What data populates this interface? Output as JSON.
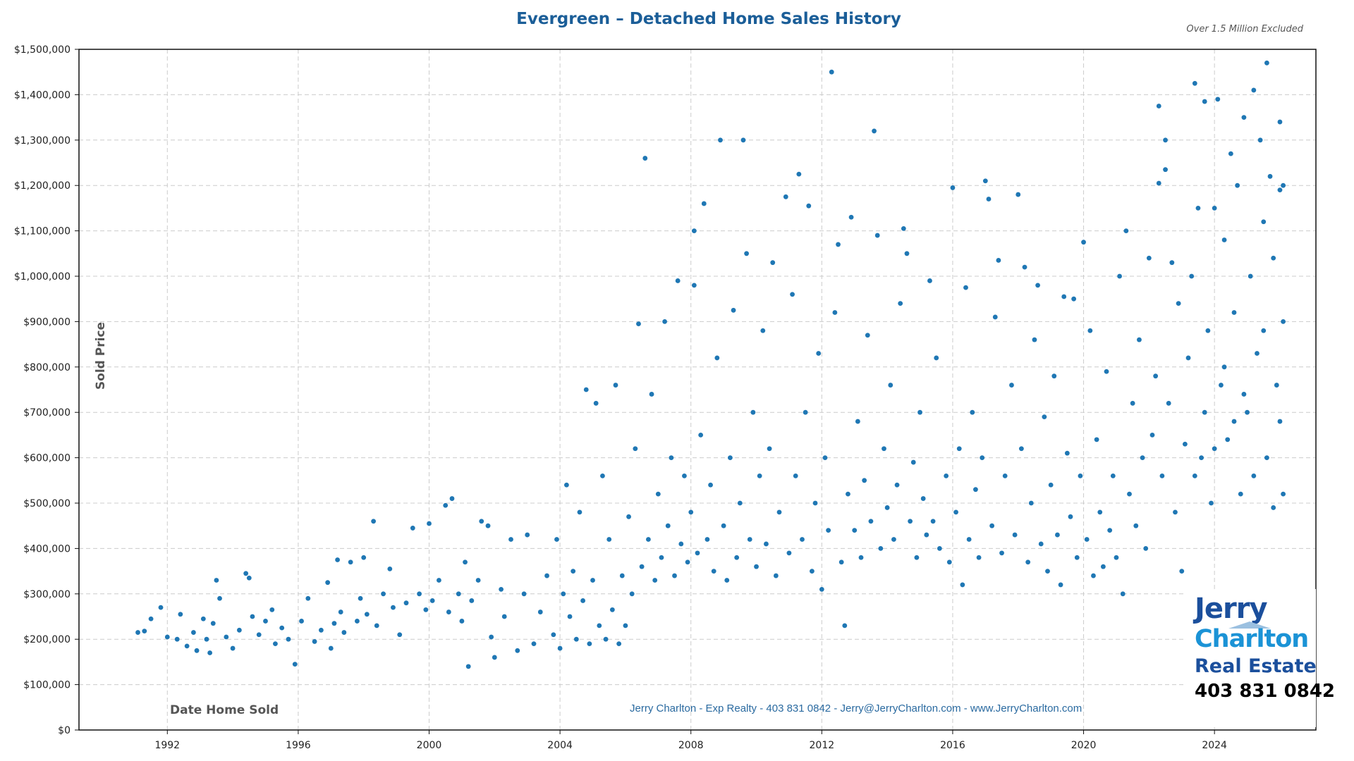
{
  "title": "Evergreen – Detached Home Sales History",
  "note": "Over 1.5 Million Excluded",
  "footer": "Jerry Charlton - Exp Realty - 403 831 0842 - Jerry@JerryCharlton.com - www.JerryCharlton.com",
  "logo": {
    "line1": "Jerry",
    "line2": "Charlton",
    "line3": "Real Estate",
    "phone": "403 831 0842"
  },
  "colors": {
    "points": "#1f77b4",
    "title": "#1b5e98",
    "footer": "#2a6aa0",
    "logo_dark": "#1b4f9c",
    "logo_light": "#1b93d6"
  },
  "chart_data": {
    "type": "scatter",
    "title": "Evergreen – Detached Home Sales History",
    "xlabel": "Date Home Sold",
    "ylabel": "Sold Price",
    "xlim": [
      1989.3,
      2027.1
    ],
    "ylim": [
      0,
      1500000
    ],
    "grid": true,
    "x_ticks": [
      "1992",
      "1996",
      "2000",
      "2004",
      "2008",
      "2012",
      "2016",
      "2020",
      "2024"
    ],
    "y_ticks": [
      "$0",
      "$100,000",
      "$200,000",
      "$300,000",
      "$400,000",
      "$500,000",
      "$600,000",
      "$700,000",
      "$800,000",
      "$900,000",
      "$1,000,000",
      "$1,100,000",
      "$1,200,000",
      "$1,300,000",
      "$1,400,000",
      "$1,500,000"
    ],
    "points": [
      [
        1991.1,
        215000
      ],
      [
        1991.3,
        218000
      ],
      [
        1991.5,
        245000
      ],
      [
        1991.8,
        270000
      ],
      [
        1992.0,
        205000
      ],
      [
        1992.3,
        200000
      ],
      [
        1992.4,
        255000
      ],
      [
        1992.6,
        185000
      ],
      [
        1992.8,
        215000
      ],
      [
        1992.9,
        175000
      ],
      [
        1993.1,
        245000
      ],
      [
        1993.2,
        200000
      ],
      [
        1993.3,
        170000
      ],
      [
        1993.4,
        235000
      ],
      [
        1993.5,
        330000
      ],
      [
        1993.6,
        290000
      ],
      [
        1993.8,
        205000
      ],
      [
        1994.0,
        180000
      ],
      [
        1994.2,
        220000
      ],
      [
        1994.4,
        345000
      ],
      [
        1994.5,
        335000
      ],
      [
        1994.6,
        250000
      ],
      [
        1994.8,
        210000
      ],
      [
        1995.0,
        240000
      ],
      [
        1995.2,
        265000
      ],
      [
        1995.3,
        190000
      ],
      [
        1995.5,
        225000
      ],
      [
        1995.7,
        200000
      ],
      [
        1995.9,
        145000
      ],
      [
        1996.1,
        240000
      ],
      [
        1996.3,
        290000
      ],
      [
        1996.5,
        195000
      ],
      [
        1996.7,
        220000
      ],
      [
        1996.9,
        325000
      ],
      [
        1997.0,
        180000
      ],
      [
        1997.1,
        235000
      ],
      [
        1997.2,
        375000
      ],
      [
        1997.3,
        260000
      ],
      [
        1997.4,
        215000
      ],
      [
        1997.6,
        370000
      ],
      [
        1997.8,
        240000
      ],
      [
        1997.9,
        290000
      ],
      [
        1998.0,
        380000
      ],
      [
        1998.1,
        255000
      ],
      [
        1998.3,
        460000
      ],
      [
        1998.4,
        230000
      ],
      [
        1998.6,
        300000
      ],
      [
        1998.8,
        355000
      ],
      [
        1998.9,
        270000
      ],
      [
        1999.1,
        210000
      ],
      [
        1999.3,
        280000
      ],
      [
        1999.5,
        445000
      ],
      [
        1999.7,
        300000
      ],
      [
        1999.9,
        265000
      ],
      [
        2000.0,
        455000
      ],
      [
        2000.1,
        285000
      ],
      [
        2000.3,
        330000
      ],
      [
        2000.5,
        495000
      ],
      [
        2000.6,
        260000
      ],
      [
        2000.7,
        510000
      ],
      [
        2000.9,
        300000
      ],
      [
        2001.0,
        240000
      ],
      [
        2001.1,
        370000
      ],
      [
        2001.2,
        140000
      ],
      [
        2001.3,
        285000
      ],
      [
        2001.5,
        330000
      ],
      [
        2001.6,
        460000
      ],
      [
        2001.8,
        450000
      ],
      [
        2001.9,
        205000
      ],
      [
        2002.0,
        160000
      ],
      [
        2002.2,
        310000
      ],
      [
        2002.3,
        250000
      ],
      [
        2002.5,
        420000
      ],
      [
        2002.7,
        175000
      ],
      [
        2002.9,
        300000
      ],
      [
        2003.0,
        430000
      ],
      [
        2003.2,
        190000
      ],
      [
        2003.4,
        260000
      ],
      [
        2003.6,
        340000
      ],
      [
        2003.8,
        210000
      ],
      [
        2003.9,
        420000
      ],
      [
        2004.0,
        180000
      ],
      [
        2004.1,
        300000
      ],
      [
        2004.2,
        540000
      ],
      [
        2004.3,
        250000
      ],
      [
        2004.4,
        350000
      ],
      [
        2004.5,
        200000
      ],
      [
        2004.6,
        480000
      ],
      [
        2004.7,
        285000
      ],
      [
        2004.8,
        750000
      ],
      [
        2004.9,
        190000
      ],
      [
        2005.0,
        330000
      ],
      [
        2005.1,
        720000
      ],
      [
        2005.2,
        230000
      ],
      [
        2005.3,
        560000
      ],
      [
        2005.4,
        200000
      ],
      [
        2005.5,
        420000
      ],
      [
        2005.6,
        265000
      ],
      [
        2005.7,
        760000
      ],
      [
        2005.8,
        190000
      ],
      [
        2005.9,
        340000
      ],
      [
        2006.0,
        230000
      ],
      [
        2006.1,
        470000
      ],
      [
        2006.2,
        300000
      ],
      [
        2006.3,
        620000
      ],
      [
        2006.4,
        895000
      ],
      [
        2006.5,
        360000
      ],
      [
        2006.6,
        1260000
      ],
      [
        2006.7,
        420000
      ],
      [
        2006.8,
        740000
      ],
      [
        2006.9,
        330000
      ],
      [
        2007.0,
        520000
      ],
      [
        2007.1,
        380000
      ],
      [
        2007.2,
        900000
      ],
      [
        2007.3,
        450000
      ],
      [
        2007.4,
        600000
      ],
      [
        2007.5,
        340000
      ],
      [
        2007.6,
        990000
      ],
      [
        2007.7,
        410000
      ],
      [
        2007.8,
        560000
      ],
      [
        2007.9,
        370000
      ],
      [
        2008.0,
        480000
      ],
      [
        2008.1,
        980000
      ],
      [
        2008.1,
        1100000
      ],
      [
        2008.2,
        390000
      ],
      [
        2008.3,
        650000
      ],
      [
        2008.4,
        1160000
      ],
      [
        2008.5,
        420000
      ],
      [
        2008.6,
        540000
      ],
      [
        2008.7,
        350000
      ],
      [
        2008.8,
        820000
      ],
      [
        2008.9,
        1300000
      ],
      [
        2009.0,
        450000
      ],
      [
        2009.1,
        330000
      ],
      [
        2009.2,
        600000
      ],
      [
        2009.3,
        925000
      ],
      [
        2009.4,
        380000
      ],
      [
        2009.5,
        500000
      ],
      [
        2009.6,
        1300000
      ],
      [
        2009.7,
        1050000
      ],
      [
        2009.8,
        420000
      ],
      [
        2009.9,
        700000
      ],
      [
        2010.0,
        360000
      ],
      [
        2010.1,
        560000
      ],
      [
        2010.2,
        880000
      ],
      [
        2010.3,
        410000
      ],
      [
        2010.4,
        620000
      ],
      [
        2010.5,
        1030000
      ],
      [
        2010.6,
        340000
      ],
      [
        2010.7,
        480000
      ],
      [
        2010.9,
        1175000
      ],
      [
        2011.0,
        390000
      ],
      [
        2011.1,
        960000
      ],
      [
        2011.2,
        560000
      ],
      [
        2011.3,
        1225000
      ],
      [
        2011.4,
        420000
      ],
      [
        2011.5,
        700000
      ],
      [
        2011.6,
        1155000
      ],
      [
        2011.7,
        350000
      ],
      [
        2011.8,
        500000
      ],
      [
        2011.9,
        830000
      ],
      [
        2012.0,
        310000
      ],
      [
        2012.1,
        600000
      ],
      [
        2012.2,
        440000
      ],
      [
        2012.3,
        1450000
      ],
      [
        2012.4,
        920000
      ],
      [
        2012.5,
        1070000
      ],
      [
        2012.6,
        370000
      ],
      [
        2012.7,
        230000
      ],
      [
        2012.8,
        520000
      ],
      [
        2012.9,
        1130000
      ],
      [
        2013.0,
        440000
      ],
      [
        2013.1,
        680000
      ],
      [
        2013.2,
        380000
      ],
      [
        2013.3,
        550000
      ],
      [
        2013.4,
        870000
      ],
      [
        2013.5,
        460000
      ],
      [
        2013.6,
        1320000
      ],
      [
        2013.7,
        1090000
      ],
      [
        2013.8,
        400000
      ],
      [
        2013.9,
        620000
      ],
      [
        2014.0,
        490000
      ],
      [
        2014.1,
        760000
      ],
      [
        2014.2,
        420000
      ],
      [
        2014.3,
        540000
      ],
      [
        2014.4,
        940000
      ],
      [
        2014.5,
        1105000
      ],
      [
        2014.6,
        1050000
      ],
      [
        2014.7,
        460000
      ],
      [
        2014.8,
        590000
      ],
      [
        2014.9,
        380000
      ],
      [
        2015.0,
        700000
      ],
      [
        2015.1,
        510000
      ],
      [
        2015.2,
        430000
      ],
      [
        2015.3,
        990000
      ],
      [
        2015.4,
        460000
      ],
      [
        2015.5,
        820000
      ],
      [
        2015.6,
        400000
      ],
      [
        2015.8,
        560000
      ],
      [
        2015.9,
        370000
      ],
      [
        2016.0,
        1195000
      ],
      [
        2016.1,
        480000
      ],
      [
        2016.2,
        620000
      ],
      [
        2016.3,
        320000
      ],
      [
        2016.4,
        975000
      ],
      [
        2016.5,
        420000
      ],
      [
        2016.6,
        700000
      ],
      [
        2016.7,
        530000
      ],
      [
        2016.8,
        380000
      ],
      [
        2016.9,
        600000
      ],
      [
        2017.0,
        1210000
      ],
      [
        2017.1,
        1170000
      ],
      [
        2017.2,
        450000
      ],
      [
        2017.3,
        910000
      ],
      [
        2017.4,
        1035000
      ],
      [
        2017.5,
        390000
      ],
      [
        2017.6,
        560000
      ],
      [
        2017.8,
        760000
      ],
      [
        2017.9,
        430000
      ],
      [
        2018.0,
        1180000
      ],
      [
        2018.1,
        620000
      ],
      [
        2018.2,
        1020000
      ],
      [
        2018.3,
        370000
      ],
      [
        2018.4,
        500000
      ],
      [
        2018.5,
        860000
      ],
      [
        2018.6,
        980000
      ],
      [
        2018.7,
        410000
      ],
      [
        2018.8,
        690000
      ],
      [
        2018.9,
        350000
      ],
      [
        2019.0,
        540000
      ],
      [
        2019.1,
        780000
      ],
      [
        2019.2,
        430000
      ],
      [
        2019.3,
        320000
      ],
      [
        2019.4,
        955000
      ],
      [
        2019.5,
        610000
      ],
      [
        2019.6,
        470000
      ],
      [
        2019.7,
        950000
      ],
      [
        2019.8,
        380000
      ],
      [
        2019.9,
        560000
      ],
      [
        2020.0,
        1075000
      ],
      [
        2020.1,
        420000
      ],
      [
        2020.2,
        880000
      ],
      [
        2020.3,
        340000
      ],
      [
        2020.4,
        640000
      ],
      [
        2020.5,
        480000
      ],
      [
        2020.6,
        360000
      ],
      [
        2020.7,
        790000
      ],
      [
        2020.8,
        440000
      ],
      [
        2020.9,
        560000
      ],
      [
        2021.0,
        380000
      ],
      [
        2021.1,
        1000000
      ],
      [
        2021.2,
        300000
      ],
      [
        2021.3,
        1100000
      ],
      [
        2021.4,
        520000
      ],
      [
        2021.5,
        720000
      ],
      [
        2021.6,
        450000
      ],
      [
        2021.7,
        860000
      ],
      [
        2021.8,
        600000
      ],
      [
        2021.9,
        400000
      ],
      [
        2022.0,
        1040000
      ],
      [
        2022.1,
        650000
      ],
      [
        2022.2,
        780000
      ],
      [
        2022.3,
        1375000
      ],
      [
        2022.3,
        1205000
      ],
      [
        2022.4,
        560000
      ],
      [
        2022.5,
        1300000
      ],
      [
        2022.5,
        1235000
      ],
      [
        2022.6,
        720000
      ],
      [
        2022.7,
        1030000
      ],
      [
        2022.8,
        480000
      ],
      [
        2022.9,
        940000
      ],
      [
        2023.0,
        350000
      ],
      [
        2023.1,
        630000
      ],
      [
        2023.2,
        820000
      ],
      [
        2023.3,
        1000000
      ],
      [
        2023.4,
        1425000
      ],
      [
        2023.5,
        1150000
      ],
      [
        2023.6,
        600000
      ],
      [
        2023.7,
        1385000
      ],
      [
        2023.8,
        880000
      ],
      [
        2023.9,
        500000
      ],
      [
        2024.0,
        1150000
      ],
      [
        2024.1,
        1390000
      ],
      [
        2024.2,
        760000
      ],
      [
        2024.3,
        1080000
      ],
      [
        2024.4,
        640000
      ],
      [
        2024.5,
        1270000
      ],
      [
        2024.6,
        920000
      ],
      [
        2024.7,
        1200000
      ],
      [
        2024.8,
        520000
      ],
      [
        2024.9,
        1350000
      ],
      [
        2025.0,
        700000
      ],
      [
        2025.1,
        1000000
      ],
      [
        2025.2,
        1410000
      ],
      [
        2025.3,
        830000
      ],
      [
        2025.4,
        1300000
      ],
      [
        2025.5,
        1120000
      ],
      [
        2025.6,
        1470000
      ],
      [
        2025.6,
        600000
      ],
      [
        2025.7,
        1220000
      ],
      [
        2025.8,
        1040000
      ],
      [
        2025.9,
        760000
      ],
      [
        2026.0,
        1340000
      ],
      [
        2026.0,
        1190000
      ],
      [
        2026.1,
        1200000
      ],
      [
        2026.1,
        520000
      ],
      [
        2026.1,
        900000
      ],
      [
        2026.0,
        680000
      ],
      [
        2025.8,
        490000
      ],
      [
        2025.5,
        880000
      ],
      [
        2025.2,
        560000
      ],
      [
        2024.9,
        740000
      ],
      [
        2024.6,
        680000
      ],
      [
        2024.3,
        800000
      ],
      [
        2024.0,
        620000
      ],
      [
        2023.7,
        700000
      ],
      [
        2023.4,
        560000
      ]
    ]
  }
}
